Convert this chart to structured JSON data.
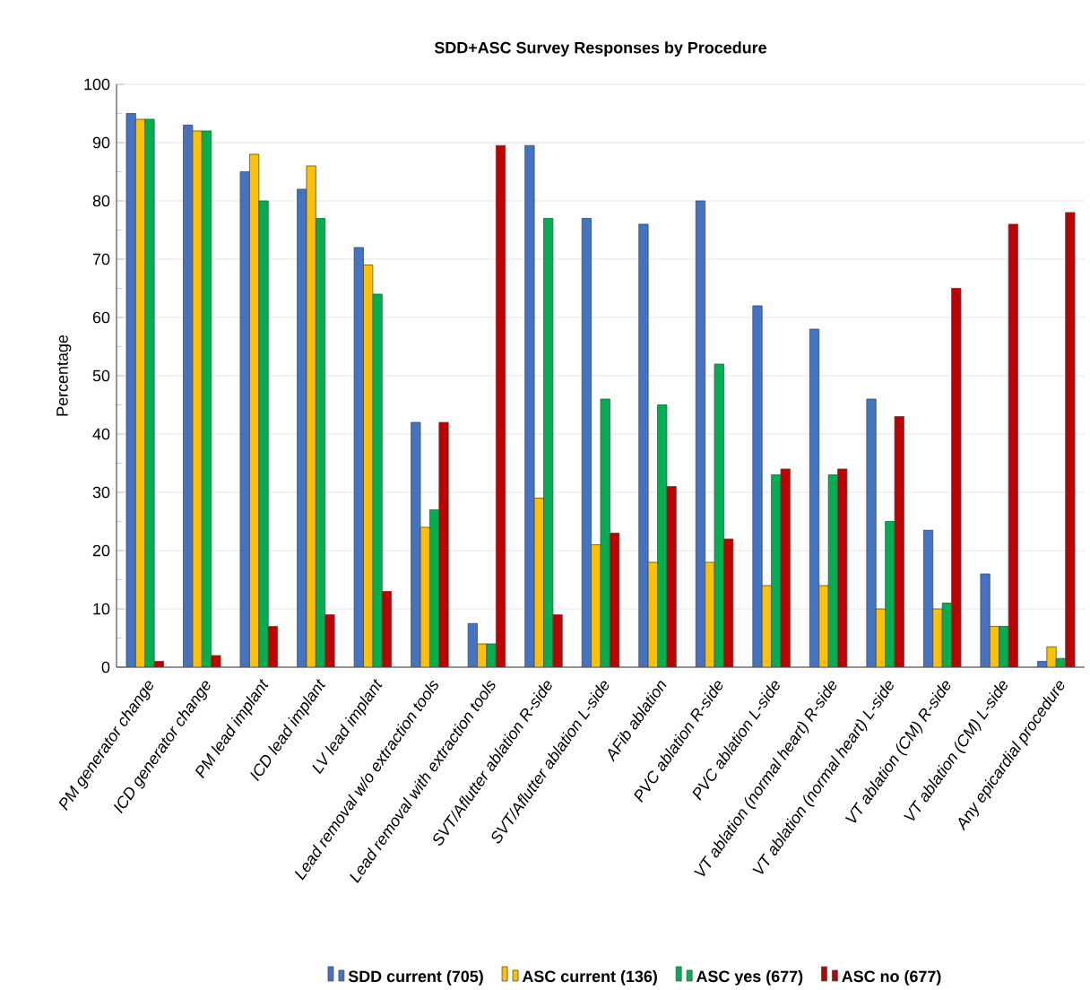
{
  "chart_data": {
    "type": "bar",
    "title": "SDD+ASC Survey Responses by Procedure",
    "ylabel": "Percentage",
    "categories": [
      "PM generator change",
      "ICD generator change",
      "PM lead implant",
      "ICD lead implant",
      "LV lead implant",
      "Lead removal w/o extraction tools",
      "Lead removal with extraction tools",
      "SVT/Aflutter ablation R-side",
      "SVT/Aflutter ablation L-side",
      "AFib ablation",
      "PVC ablation R-side",
      "PVC ablation L-side",
      "VT ablation (normal heart) R-side",
      "VT ablation (normal heart) L-side",
      "VT ablation (CM) R-side",
      "VT ablation (CM) L-side",
      "Any epicardial procedure"
    ],
    "series": [
      {
        "name": "SDD  current (705)",
        "color": "#4472c4",
        "values": [
          95,
          93,
          85,
          82,
          72,
          42,
          7.5,
          89.5,
          77,
          76,
          80,
          62,
          58,
          46,
          23.5,
          16,
          1
        ]
      },
      {
        "name": "ASC  current (136)",
        "color": "#ffc000",
        "values": [
          94,
          92,
          88,
          86,
          69,
          24,
          4,
          29,
          21,
          18,
          18,
          14,
          14,
          10,
          10,
          7,
          3.5
        ]
      },
      {
        "name": "ASC  yes (677)",
        "color": "#00b050",
        "values": [
          94,
          92,
          80,
          77,
          64,
          27,
          4,
          77,
          46,
          45,
          52,
          33,
          33,
          25,
          11,
          7,
          1.5
        ]
      },
      {
        "name": "ASC  no (677)",
        "color": "#c00000",
        "values": [
          1,
          2,
          7,
          9,
          13,
          42,
          89.5,
          9,
          23,
          31,
          22,
          34,
          34,
          43,
          65,
          76,
          78
        ]
      }
    ],
    "ylim": [
      0,
      100
    ],
    "yticks": [
      0,
      10,
      20,
      30,
      40,
      50,
      60,
      70,
      80,
      90,
      100
    ],
    "grid": "y",
    "legend": "bottom"
  }
}
